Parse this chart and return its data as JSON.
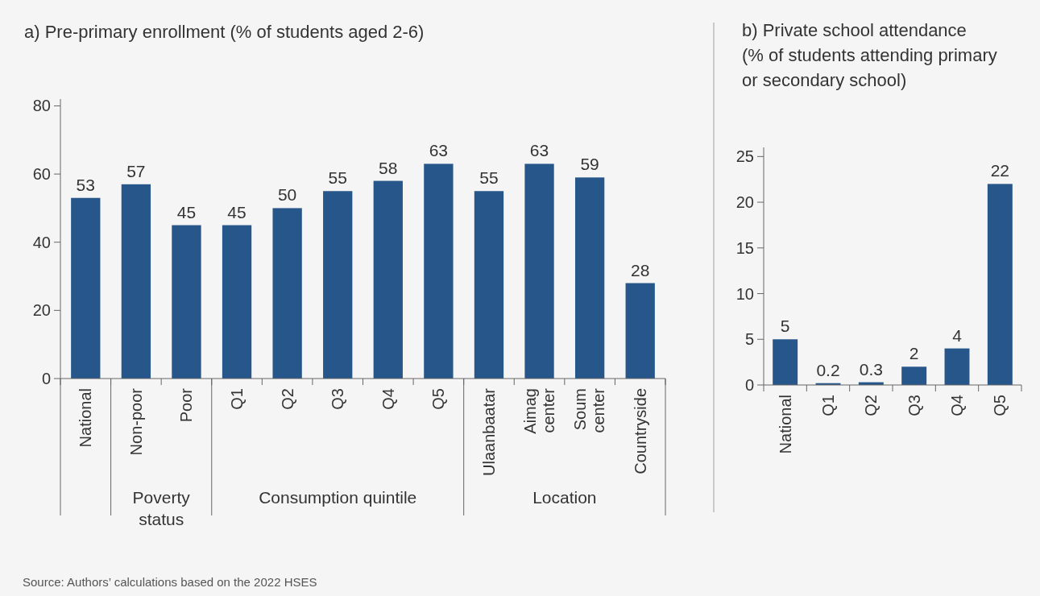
{
  "chart_data": [
    {
      "type": "bar",
      "title": "a) Pre-primary enrollment (% of students aged 2-6)",
      "categories": [
        "National",
        "Non-poor",
        "Poor",
        "Q1",
        "Q2",
        "Q3",
        "Q4",
        "Q5",
        "Ulaanbaatar",
        "Aimag center",
        "Soum center",
        "Countryside"
      ],
      "values": [
        53,
        57,
        45,
        45,
        50,
        55,
        58,
        63,
        55,
        63,
        59,
        28
      ],
      "color": "#27568b",
      "ylim": [
        0,
        82
      ],
      "yticks": [
        0,
        20,
        40,
        60,
        80
      ],
      "data_labels": true,
      "annotations": [
        "Poverty status",
        "Consumption quintile",
        "Location",
        "Source: Authors’ calculations based on the 2022 HSES"
      ]
    },
    {
      "type": "bar",
      "title": "b) Private school attendance\n(% of students attending primary\nor secondary school)",
      "categories": [
        "National",
        "Q1",
        "Q2",
        "Q3",
        "Q4",
        "Q5"
      ],
      "values": [
        5,
        0.2,
        0.3,
        2,
        4,
        22
      ],
      "color": "#27568b",
      "ylim": [
        0,
        26
      ],
      "yticks": [
        0,
        5,
        10,
        15,
        20,
        25
      ],
      "data_labels": true
    }
  ]
}
